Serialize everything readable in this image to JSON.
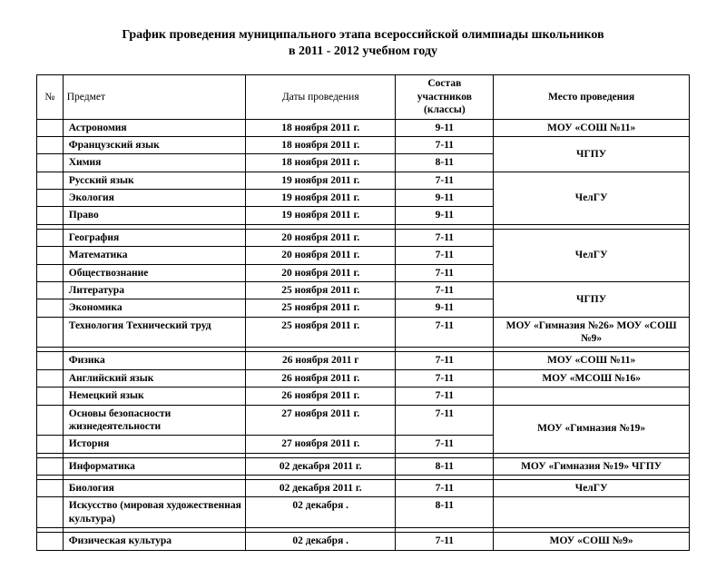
{
  "title_line1": "График проведения муниципального этапа всероссийской олимпиады школьников",
  "title_line2": "в 2011 - 2012 учебном году",
  "headers": {
    "num": "№",
    "subject": "Предмет",
    "dates": "Даты проведения",
    "grades": "Состав участников (классы)",
    "place": "Место проведения"
  },
  "groups": [
    {
      "rows": [
        {
          "subject": "Астрономия",
          "date": "18 ноября 2011 г.",
          "grades": "9-11",
          "place": "МОУ «СОШ №11»"
        },
        {
          "subject": "Французский язык",
          "date": "18 ноября 2011 г.",
          "grades": "7-11",
          "place": "ЧГПУ",
          "place_rowspan": 2
        },
        {
          "subject": "Химия",
          "date": "18 ноября 2011 г.",
          "grades": "8-11"
        },
        {
          "subject": "Русский язык",
          "date": "19 ноября 2011 г.",
          "grades": "7-11",
          "place": "ЧелГУ",
          "place_rowspan": 3
        },
        {
          "subject": "Экология",
          "date": "19 ноября 2011 г.",
          "grades": "9-11"
        },
        {
          "subject": "Право",
          "date": "19 ноября 2011 г.",
          "grades": "9-11"
        }
      ]
    },
    {
      "rows": [
        {
          "subject": "География",
          "date": "20 ноября 2011 г.",
          "grades": "7-11",
          "place": "ЧелГУ",
          "place_rowspan": 3
        },
        {
          "subject": "Математика",
          "date": "20 ноября 2011 г.",
          "grades": "7-11"
        },
        {
          "subject": "Обществознание",
          "date": "20 ноября 2011 г.",
          "grades": "7-11"
        },
        {
          "subject": "Литература",
          "date": "25 ноября 2011 г.",
          "grades": "7-11",
          "place": "ЧГПУ",
          "place_rowspan": 2
        },
        {
          "subject": "Экономика",
          "date": "25 ноября 2011 г.",
          "grades": "9-11"
        },
        {
          "subject": "Технология Технический труд",
          "date": "25 ноября 2011 г.",
          "grades": "7-11",
          "place": "МОУ «Гимназия №26» МОУ «СОШ №9»"
        }
      ]
    },
    {
      "rows": [
        {
          "subject": "Физика",
          "date": "26 ноября 2011 г",
          "grades": "7-11",
          "place": "МОУ «СОШ №11»"
        },
        {
          "subject": "Английский язык",
          "date": "26 ноября 2011 г.",
          "grades": "7-11",
          "place": "МОУ «МСОШ №16»"
        },
        {
          "subject": "Немецкий язык",
          "date": "26 ноября 2011 г.",
          "grades": "7-11",
          "place": "",
          "place_rowspan": 1
        },
        {
          "subject": "Основы безопасности жизнедеятельности",
          "date": "27 ноября 2011 г.",
          "grades": "7-11",
          "place": "МОУ «Гимназия №19»",
          "place_rowspan": 2
        },
        {
          "subject": "История",
          "date": "27 ноября 2011 г.",
          "grades": "7-11"
        }
      ]
    },
    {
      "rows": [
        {
          "subject": "Информатика",
          "date": "02 декабря 2011 г.",
          "grades": "8-11",
          "place": "МОУ «Гимназия №19» ЧГПУ"
        }
      ]
    },
    {
      "rows": [
        {
          "subject": "Биология",
          "date": "02 декабря 2011 г.",
          "grades": "7-11",
          "place": "ЧелГУ"
        },
        {
          "subject": "Искусство (мировая художественная культура)",
          "date": "02 декабря .",
          "grades": "8-11",
          "place": ""
        }
      ]
    },
    {
      "rows": [
        {
          "subject": "Физическая культура",
          "date": "02 декабря .",
          "grades": "7-11",
          "place": "МОУ «СОШ №9»"
        }
      ]
    }
  ]
}
